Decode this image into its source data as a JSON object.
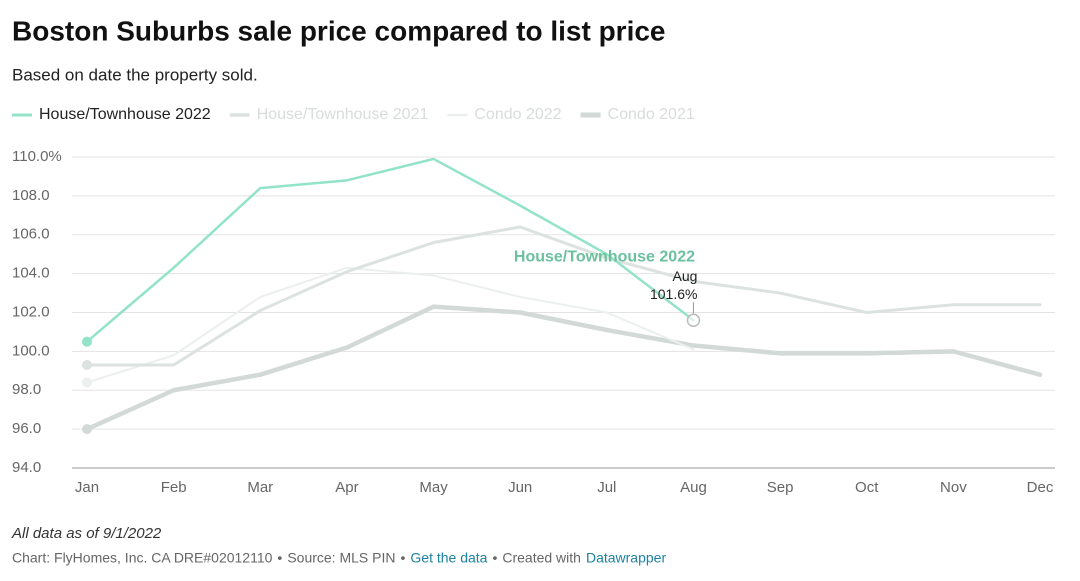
{
  "chart_data": {
    "type": "line",
    "title": "Boston Suburbs sale price compared to list price",
    "subtitle": "Based on date the property sold.",
    "categories": [
      "Jan",
      "Feb",
      "Mar",
      "Apr",
      "May",
      "Jun",
      "Jul",
      "Aug",
      "Sep",
      "Oct",
      "Nov",
      "Dec"
    ],
    "series": [
      {
        "name": "House/Townhouse 2022",
        "color": "#93e3c9",
        "values": [
          100.5,
          104.3,
          108.4,
          108.8,
          109.9,
          107.5,
          105.0,
          101.6,
          null,
          null,
          null,
          null
        ],
        "value_labels": [
          null,
          null,
          null,
          null,
          null,
          null,
          null,
          "101.6%",
          null,
          null,
          null,
          null
        ]
      },
      {
        "name": "House/Townhouse 2021",
        "color": "#dce2df",
        "values": [
          99.3,
          99.3,
          102.1,
          104.1,
          105.6,
          106.4,
          104.8,
          103.6,
          103.0,
          102.0,
          102.4,
          102.4
        ]
      },
      {
        "name": "Condo 2022",
        "color": "#ebefed",
        "values": [
          98.4,
          99.8,
          102.8,
          104.3,
          103.9,
          102.8,
          102.0,
          100.1,
          null,
          null,
          null,
          null
        ]
      },
      {
        "name": "Condo 2021",
        "color": "#d2d9d6",
        "values": [
          96.0,
          98.0,
          98.8,
          100.2,
          102.3,
          102.0,
          101.1,
          100.3,
          99.9,
          99.9,
          100.0,
          98.8
        ]
      }
    ],
    "ylim": [
      94,
      110
    ],
    "yticks": [
      {
        "value": 94,
        "label": "94.0"
      },
      {
        "value": 96,
        "label": "96.0"
      },
      {
        "value": 98,
        "label": "98.0"
      },
      {
        "value": 100,
        "label": "100.0"
      },
      {
        "value": 102,
        "label": "102.0"
      },
      {
        "value": 104,
        "label": "104.0"
      },
      {
        "value": 106,
        "label": "106.0"
      },
      {
        "value": 108,
        "label": "108.0"
      },
      {
        "value": 110,
        "label": "110.0%"
      }
    ],
    "grid": true,
    "legend": "top-left",
    "notes": "All data as of 9/1/2022",
    "footer": {
      "chart_by": "Chart: FlyHomes, Inc. CA DRE#02012110",
      "separator": "•",
      "source": "Source: MLS PIN",
      "get_data": "Get the data",
      "created_with": "Created with",
      "tool": "Datawrapper"
    }
  }
}
